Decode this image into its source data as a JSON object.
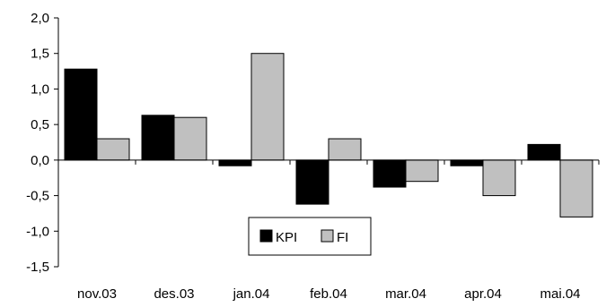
{
  "chart_data": {
    "type": "bar",
    "categories": [
      "nov.03",
      "des.03",
      "jan.04",
      "feb.04",
      "mar.04",
      "apr.04",
      "mai.04"
    ],
    "series": [
      {
        "name": "KPI",
        "color": "#000000",
        "values": [
          1.28,
          0.63,
          -0.08,
          -0.62,
          -0.38,
          -0.08,
          0.22
        ]
      },
      {
        "name": "FI",
        "color": "#c0c0c0",
        "values": [
          0.3,
          0.6,
          1.5,
          0.3,
          -0.3,
          -0.5,
          -0.8
        ]
      }
    ],
    "yticks": [
      "2,0",
      "1,5",
      "1,0",
      "0,5",
      "0,0",
      "-0,5",
      "-1,0",
      "-1,5"
    ],
    "ylim": [
      -1.5,
      2.0
    ],
    "legend_position": "bottom-center",
    "grid": false
  }
}
